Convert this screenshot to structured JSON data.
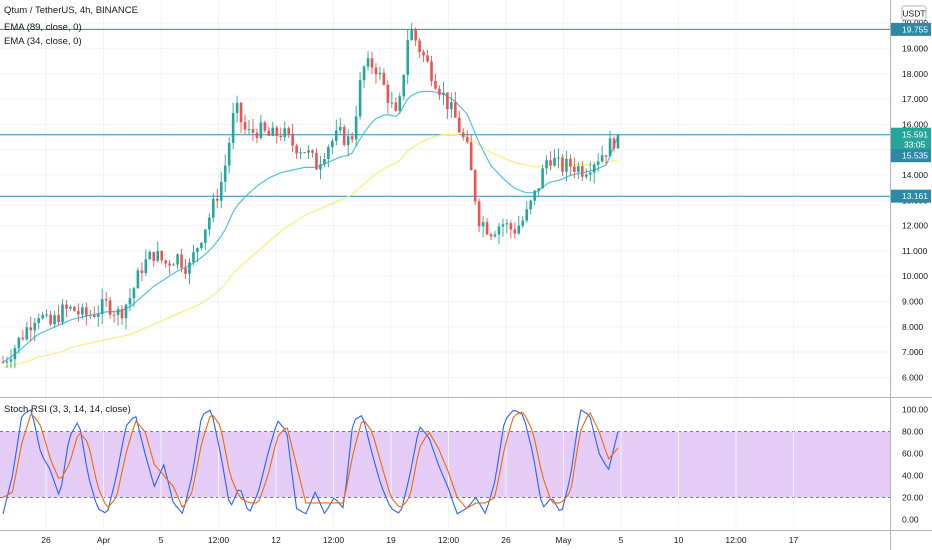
{
  "header": {
    "symbol": "Qtum / TetherUS, 4h, BINANCE",
    "ema1": "EMA (89, close, 0)",
    "ema2": "EMA (34, close, 0)",
    "currency": "USDT"
  },
  "stoch_label": "Stoch RSI (3, 3, 14, 14, close)",
  "colors": {
    "up": "#26a69a",
    "down": "#ef5350",
    "ema89": "#f7ee7a",
    "ema34": "#4fc3dc",
    "hline": "#2a8aa8",
    "k": "#2962ff",
    "d": "#ef6c00",
    "band": "#e1c4f7",
    "current": "#26a69a",
    "ema_tag": "#2a8aa8"
  },
  "chart_data": [
    {
      "type": "candlestick",
      "title": "Qtum / TetherUS, 4h, BINANCE",
      "x_ticks": [
        "26",
        "Apr",
        "5",
        "12:00",
        "12",
        "12:00",
        "19",
        "12:00",
        "26",
        "May",
        "5",
        "10",
        "12:00",
        "17"
      ],
      "y_ticks": [
        "20.000",
        "19.000",
        "18.000",
        "17.000",
        "16.000",
        "15.000",
        "14.000",
        "13.000",
        "12.000",
        "11.000",
        "10.000",
        "9.000",
        "8.000",
        "7.000",
        "6.000"
      ],
      "y_range": [
        5.5,
        20.6
      ],
      "hlines": [
        19.755,
        15.591,
        13.161
      ],
      "price_tags": [
        {
          "label": "19.755",
          "value": 19.755,
          "kind": "line"
        },
        {
          "label": "15.591",
          "value": 15.591,
          "kind": "current"
        },
        {
          "label": "33:05",
          "value": 15.591,
          "kind": "timer"
        },
        {
          "label": "15.535",
          "value": 15.535,
          "kind": "ema"
        },
        {
          "label": "13.161",
          "value": 13.161,
          "kind": "line"
        }
      ],
      "close_path": [
        6.6,
        7.2,
        7.9,
        8.6,
        8.0,
        8.6,
        8.7,
        8.4,
        8.6,
        8.9,
        8.5,
        9.2,
        10.4,
        10.9,
        10.5,
        10.8,
        10.3,
        11.5,
        12.6,
        14.0,
        16.7,
        15.6,
        15.8,
        15.5,
        15.7,
        15.2,
        15.0,
        14.4,
        15.2,
        15.6,
        15.3,
        18.2,
        18.4,
        17.3,
        16.1,
        19.9,
        18.9,
        18.0,
        17.1,
        16.2,
        15.0,
        12.3,
        11.8,
        12.1,
        11.8,
        12.3,
        13.4,
        14.8,
        14.3,
        14.4,
        14.2,
        14.6,
        15.0,
        15.591
      ],
      "ema34_path": [
        6.6,
        6.9,
        7.3,
        7.7,
        7.9,
        8.1,
        8.3,
        8.4,
        8.5,
        8.6,
        8.6,
        8.8,
        9.2,
        9.6,
        9.9,
        10.2,
        10.4,
        10.7,
        11.1,
        11.7,
        12.7,
        13.2,
        13.6,
        13.9,
        14.1,
        14.2,
        14.3,
        14.3,
        14.5,
        14.7,
        14.8,
        15.6,
        16.2,
        16.4,
        16.3,
        17.1,
        17.3,
        17.3,
        17.2,
        16.9,
        16.4,
        15.3,
        14.4,
        13.9,
        13.5,
        13.3,
        13.3,
        13.7,
        13.8,
        14.0,
        14.1,
        14.2,
        14.4,
        15.535
      ],
      "ema89_path": [
        6.4,
        6.5,
        6.6,
        6.8,
        6.9,
        7.0,
        7.2,
        7.3,
        7.4,
        7.5,
        7.6,
        7.7,
        7.9,
        8.1,
        8.3,
        8.5,
        8.7,
        8.9,
        9.2,
        9.6,
        10.2,
        10.6,
        11.0,
        11.4,
        11.8,
        12.1,
        12.4,
        12.6,
        12.8,
        13.0,
        13.2,
        13.6,
        14.0,
        14.3,
        14.5,
        15.0,
        15.3,
        15.5,
        15.6,
        15.6,
        15.5,
        15.2,
        14.9,
        14.7,
        14.5,
        14.4,
        14.3,
        14.4,
        14.4,
        14.4,
        14.4,
        14.4,
        14.5,
        14.6
      ]
    },
    {
      "type": "line",
      "title": "Stoch RSI (3, 3, 14, 14, close)",
      "y_ticks": [
        "100.00",
        "80.00",
        "60.00",
        "40.00",
        "20.00",
        "0.00"
      ],
      "y_range": [
        -6,
        106
      ],
      "band": [
        20,
        80
      ],
      "series": [
        {
          "key": "k",
          "values": [
            5,
            40,
            95,
            100,
            60,
            45,
            20,
            75,
            90,
            40,
            10,
            5,
            40,
            85,
            95,
            60,
            30,
            50,
            15,
            5,
            40,
            95,
            100,
            60,
            10,
            30,
            5,
            25,
            60,
            90,
            80,
            10,
            5,
            25,
            5,
            20,
            10,
            90,
            95,
            60,
            30,
            10,
            5,
            40,
            85,
            75,
            50,
            30,
            5,
            10,
            20,
            5,
            35,
            90,
            100,
            95,
            60,
            10,
            20,
            5,
            40,
            100,
            95,
            60,
            45,
            80
          ]
        },
        {
          "key": "d",
          "values": [
            20,
            25,
            70,
            97,
            85,
            55,
            35,
            50,
            80,
            70,
            30,
            10,
            20,
            60,
            90,
            80,
            50,
            40,
            30,
            10,
            25,
            70,
            97,
            85,
            40,
            20,
            15,
            15,
            40,
            75,
            85,
            50,
            15,
            15,
            15,
            15,
            15,
            60,
            92,
            80,
            50,
            20,
            10,
            20,
            65,
            80,
            65,
            45,
            20,
            10,
            15,
            15,
            20,
            65,
            95,
            98,
            80,
            40,
            15,
            15,
            25,
            80,
            98,
            80,
            55,
            65
          ]
        }
      ]
    }
  ]
}
